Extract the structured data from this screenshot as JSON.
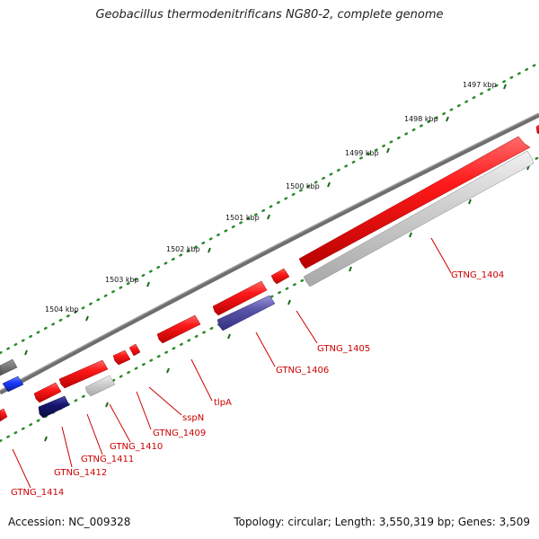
{
  "title": "Geobacillus thermodenitrificans NG80-2, complete genome",
  "footer": {
    "accession": "Accession: NC_009328",
    "topology": "Topology: circular; Length: 3,550,319 bp; Genes: 3,509"
  },
  "kbp_labels": [
    "1497 kbp",
    "1498 kbp",
    "1499 kbp",
    "1500 kbp",
    "1501 kbp",
    "1502 kbp",
    "1503 kbp",
    "1504 kbp"
  ],
  "gene_labels": [
    "GTNG_1404",
    "GTNG_1405",
    "GTNG_1406",
    "tlpA",
    "sspN",
    "GTNG_1409",
    "GTNG_1410",
    "GTNG_1411",
    "GTNG_1412",
    "GTNG_1414"
  ],
  "colors": {
    "forward_gene": "#e60000",
    "reverse_gene_gray": "#c8c8c8",
    "reverse_gene_blue": "#5a54a8",
    "dark_blue_gene": "#1a1a80",
    "bright_blue_gene": "#1a3cff",
    "backbone": "#808080",
    "tick": "#1a7a1a",
    "label": "#cc0000"
  }
}
